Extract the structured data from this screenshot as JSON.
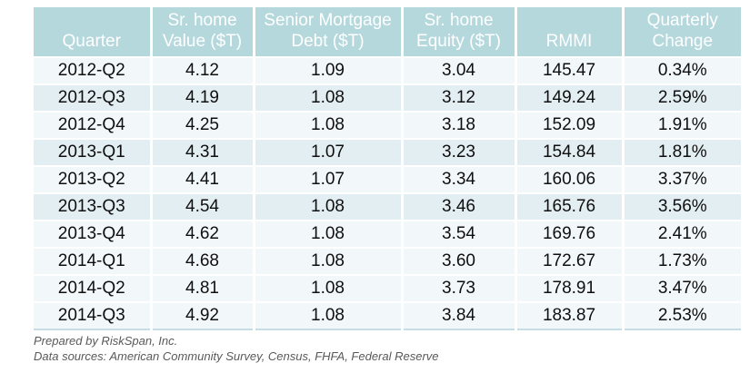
{
  "chart_data": {
    "type": "table",
    "columns": [
      "Quarter",
      "Sr. home Value ($T)",
      "Senior Mortgage Debt ($T)",
      "Sr. home Equity ($T)",
      "RMMI",
      "Quarterly Change"
    ],
    "rows": [
      [
        "2012-Q2",
        "4.12",
        "1.09",
        "3.04",
        "145.47",
        "0.34%"
      ],
      [
        "2012-Q3",
        "4.19",
        "1.08",
        "3.12",
        "149.24",
        "2.59%"
      ],
      [
        "2012-Q4",
        "4.25",
        "1.08",
        "3.18",
        "152.09",
        "1.91%"
      ],
      [
        "2013-Q1",
        "4.31",
        "1.07",
        "3.23",
        "154.84",
        "1.81%"
      ],
      [
        "2013-Q2",
        "4.41",
        "1.07",
        "3.34",
        "160.06",
        "3.37%"
      ],
      [
        "2013-Q3",
        "4.54",
        "1.08",
        "3.46",
        "165.76",
        "3.56%"
      ],
      [
        "2013-Q4",
        "4.62",
        "1.08",
        "3.54",
        "169.76",
        "2.41%"
      ],
      [
        "2014-Q1",
        "4.68",
        "1.08",
        "3.60",
        "172.67",
        "1.73%"
      ],
      [
        "2014-Q2",
        "4.81",
        "1.08",
        "3.73",
        "178.91",
        "3.47%"
      ],
      [
        "2014-Q3",
        "4.92",
        "1.08",
        "3.84",
        "183.87",
        "2.53%"
      ]
    ]
  },
  "table": {
    "headers": [
      {
        "lines": [
          "Quarter"
        ]
      },
      {
        "lines": [
          "Sr. home",
          "Value ($T)"
        ]
      },
      {
        "lines": [
          "Senior Mortgage",
          "Debt ($T)"
        ]
      },
      {
        "lines": [
          "Sr. home",
          "Equity ($T)"
        ]
      },
      {
        "lines": [
          "RMMI"
        ]
      },
      {
        "lines": [
          "Quarterly",
          "Change"
        ]
      }
    ]
  },
  "footer": {
    "prepared_by": "Prepared by RiskSpan, Inc.",
    "data_sources": "Data sources: American Community Survey, Census, FHFA, Federal Reserve"
  },
  "colors": {
    "header_bg": "#b5d8dd",
    "header_text": "#ffffff",
    "row_light": "#f2f8fa",
    "row_tinted": "#e3eef2",
    "body_text": "#0f0f0f",
    "footer_text": "#595959",
    "table_bottom_border": "#c6dde4"
  }
}
